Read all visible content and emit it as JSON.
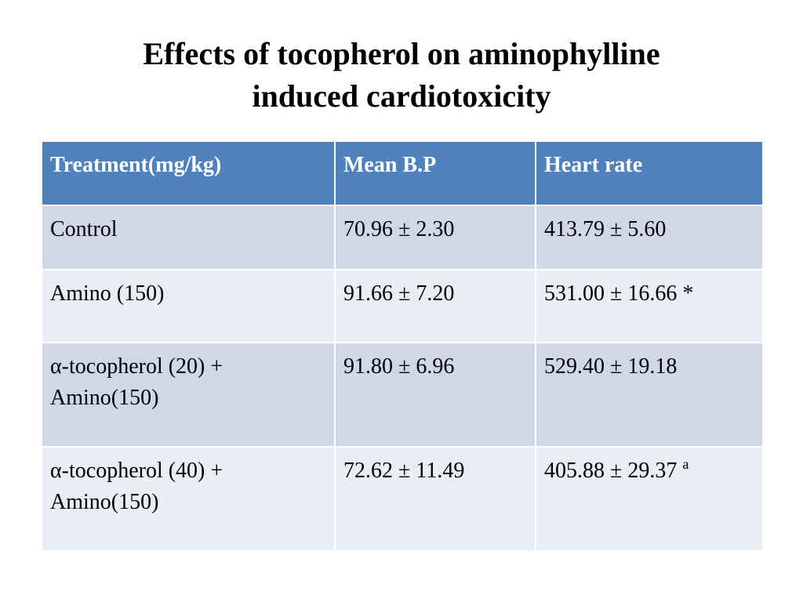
{
  "title": {
    "line1": "Effects of tocopherol on aminophylline",
    "line2": "induced cardiotoxicity"
  },
  "table": {
    "headers": [
      "Treatment(mg/kg)",
      "Mean B.P",
      "Heart rate"
    ],
    "rows": [
      {
        "treatment_line1": "Control",
        "treatment_line2": "",
        "mean_bp": "70.96 ± 2.30",
        "heart_rate": "413.79 ± 5.60",
        "heart_rate_mark": ""
      },
      {
        "treatment_line1": "Amino (150)",
        "treatment_line2": "",
        "mean_bp": "91.66 ± 7.20",
        "heart_rate": "531.00 ± 16.66 *",
        "heart_rate_mark": ""
      },
      {
        "treatment_line1": "α-tocopherol (20) +",
        "treatment_line2": "Amino(150)",
        "mean_bp": "91.80 ± 6.96",
        "heart_rate": "529.40 ± 19.18",
        "heart_rate_mark": ""
      },
      {
        "treatment_line1": "α-tocopherol (40) +",
        "treatment_line2": "Amino(150)",
        "mean_bp": "72.62 ± 11.49",
        "heart_rate": "405.88 ± 29.37",
        "heart_rate_mark": "a"
      }
    ]
  },
  "colors": {
    "header_bg": "#4f81bd",
    "row_odd_bg": "#d0d8e8",
    "row_even_bg": "#e9edf4"
  }
}
